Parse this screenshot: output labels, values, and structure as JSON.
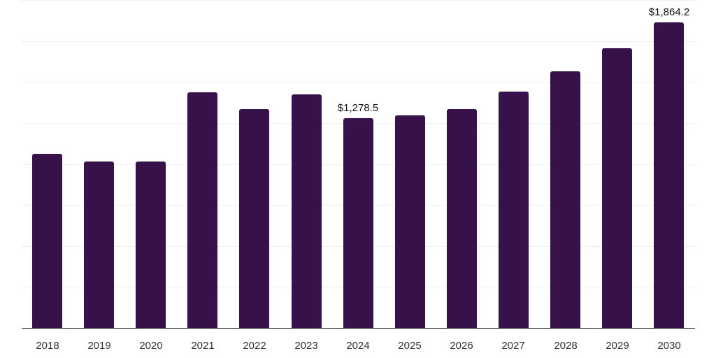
{
  "chart_data": {
    "type": "bar",
    "title": "",
    "xlabel": "",
    "ylabel": "",
    "categories": [
      "2018",
      "2019",
      "2020",
      "2021",
      "2022",
      "2023",
      "2024",
      "2025",
      "2026",
      "2027",
      "2028",
      "2029",
      "2030"
    ],
    "values": [
      1060,
      1017,
      1017,
      1439,
      1336,
      1423,
      1278.5,
      1298,
      1336,
      1443,
      1563,
      1704,
      1864.2
    ],
    "data_labels": [
      {
        "category": "2024",
        "text": "$1,278.5"
      },
      {
        "category": "2030",
        "text": "$1,864.2"
      }
    ],
    "ylim": [
      0,
      2000
    ],
    "grid": true,
    "gridline_step": 250,
    "y_tick_labels_visible": false,
    "legend": null,
    "bar_color": "#37124a"
  }
}
